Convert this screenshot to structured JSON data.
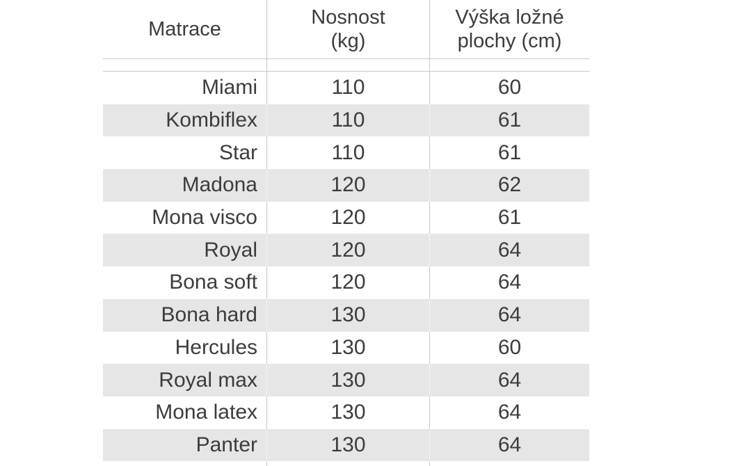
{
  "chart_data": {
    "type": "table",
    "title": "",
    "columns": [
      "Matrace",
      "Nosnost (kg)",
      "Výška ložné plochy (cm)"
    ],
    "header_lines": [
      [
        "Matrace"
      ],
      [
        "Nosnost",
        "(kg)"
      ],
      [
        "Výška ložné",
        "plochy (cm)"
      ]
    ],
    "rows": [
      {
        "matrace": "Miami",
        "nosnost_kg": 110,
        "vyska_cm": 60
      },
      {
        "matrace": "Kombiflex",
        "nosnost_kg": 110,
        "vyska_cm": 61
      },
      {
        "matrace": "Star",
        "nosnost_kg": 110,
        "vyska_cm": 61
      },
      {
        "matrace": "Madona",
        "nosnost_kg": 120,
        "vyska_cm": 62
      },
      {
        "matrace": "Mona visco",
        "nosnost_kg": 120,
        "vyska_cm": 61
      },
      {
        "matrace": "Royal",
        "nosnost_kg": 120,
        "vyska_cm": 64
      },
      {
        "matrace": "Bona soft",
        "nosnost_kg": 120,
        "vyska_cm": 64
      },
      {
        "matrace": "Bona hard",
        "nosnost_kg": 130,
        "vyska_cm": 64
      },
      {
        "matrace": "Hercules",
        "nosnost_kg": 130,
        "vyska_cm": 60
      },
      {
        "matrace": "Royal max",
        "nosnost_kg": 130,
        "vyska_cm": 64
      },
      {
        "matrace": "Mona latex",
        "nosnost_kg": 130,
        "vyska_cm": 64
      },
      {
        "matrace": "Panter",
        "nosnost_kg": 130,
        "vyska_cm": 64
      }
    ],
    "layout": {
      "row_striping": "alternating",
      "grid": "column-separators-and-header-rule"
    }
  },
  "colors": {
    "stripe": "#e6e6e6",
    "grid_line": "#c8c8c8",
    "text": "#3c3c3c",
    "background": "#ffffff"
  }
}
